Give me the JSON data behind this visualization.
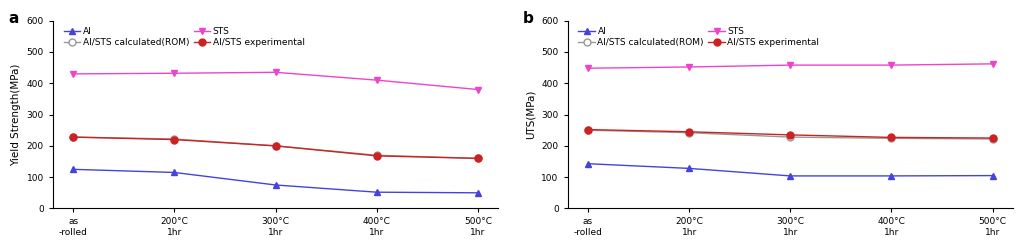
{
  "x_labels": [
    "as\n-rolled",
    "200°C\n1hr",
    "300°C\n1hr",
    "400°C\n1hr",
    "500°C\n1hr"
  ],
  "x_positions": [
    0,
    1,
    2,
    3,
    4
  ],
  "panel_a": {
    "title": "a",
    "ylabel": "Yield Strength(MPa)",
    "ylim": [
      0,
      600
    ],
    "yticks": [
      0,
      100,
      200,
      300,
      400,
      500,
      600
    ],
    "series": {
      "Al": {
        "values": [
          125,
          115,
          75,
          52,
          50
        ],
        "color": "#4444dd",
        "marker": "^",
        "marker_face": "#4444dd",
        "linestyle": "-",
        "label": "Al"
      },
      "STS": {
        "values": [
          430,
          432,
          435,
          410,
          380
        ],
        "color": "#ee44cc",
        "marker": "v",
        "marker_face": "#ee44cc",
        "linestyle": "-",
        "label": "STS"
      },
      "calculated": {
        "values": [
          228,
          222,
          200,
          170,
          160
        ],
        "color": "#999999",
        "marker": "o",
        "marker_face": "white",
        "linestyle": "-",
        "label": "Al/STS calculated(ROM)"
      },
      "experimental": {
        "values": [
          228,
          220,
          200,
          168,
          160
        ],
        "color": "#cc2222",
        "marker": "o",
        "marker_face": "#cc2222",
        "linestyle": "-",
        "label": "Al/STS experimental"
      }
    }
  },
  "panel_b": {
    "title": "b",
    "ylabel": "UTS(MPa)",
    "ylim": [
      0,
      600
    ],
    "yticks": [
      0,
      100,
      200,
      300,
      400,
      500,
      600
    ],
    "series": {
      "Al": {
        "values": [
          143,
          128,
          104,
          104,
          105
        ],
        "color": "#4444dd",
        "marker": "^",
        "marker_face": "#4444dd",
        "linestyle": "-",
        "label": "Al"
      },
      "STS": {
        "values": [
          448,
          452,
          458,
          458,
          462
        ],
        "color": "#ee44cc",
        "marker": "v",
        "marker_face": "#ee44cc",
        "linestyle": "-",
        "label": "STS"
      },
      "calculated": {
        "values": [
          250,
          242,
          228,
          224,
          222
        ],
        "color": "#999999",
        "marker": "o",
        "marker_face": "white",
        "linestyle": "-",
        "label": "Al/STS calculated(ROM)"
      },
      "experimental": {
        "values": [
          252,
          245,
          235,
          227,
          225
        ],
        "color": "#cc2222",
        "marker": "o",
        "marker_face": "#cc2222",
        "linestyle": "-",
        "label": "Al/STS experimental"
      }
    }
  },
  "legend_labels": {
    "Al": "Al",
    "STS": "STS",
    "calculated": "Al/STS calculated(ROM)",
    "experimental": "Al/STS experimental"
  },
  "background_color": "#ffffff",
  "fontsize": 7.5,
  "linewidth": 1.0,
  "markersize": 5
}
